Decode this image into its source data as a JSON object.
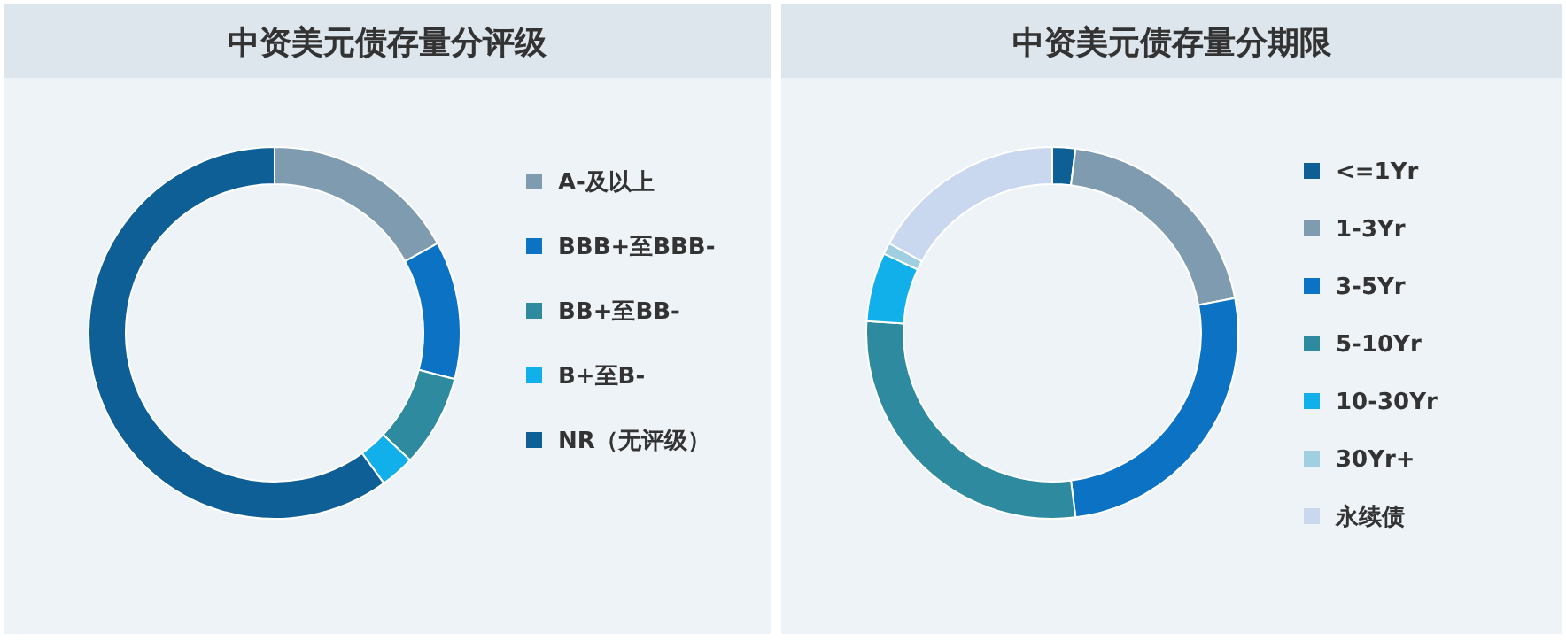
{
  "chart_data": [
    {
      "type": "donut",
      "title": "中资美元债存量分评级",
      "categories": [
        "A-及以上",
        "BBB+至BBB-",
        "BB+至BB-",
        "B+至B-",
        "NR（无评级）"
      ],
      "values": [
        17,
        12,
        8,
        3,
        60
      ],
      "colors": [
        "#7f9bb0",
        "#0b72c4",
        "#2e8a9e",
        "#12b0ea",
        "#0e5f96"
      ],
      "legend": "right"
    },
    {
      "type": "donut",
      "title": "中资美元债存量分期限",
      "categories": [
        "<=1Yr",
        "1-3Yr",
        "3-5Yr",
        "5-10Yr",
        "10-30Yr",
        "30Yr+",
        "永续债"
      ],
      "values": [
        2,
        20,
        26,
        28,
        6,
        1,
        17
      ],
      "colors": [
        "#0e5f96",
        "#7f9bb0",
        "#0b72c4",
        "#2e8a9e",
        "#12b0ea",
        "#9fcfe0",
        "#c9d8ee"
      ],
      "legend": "right"
    }
  ]
}
